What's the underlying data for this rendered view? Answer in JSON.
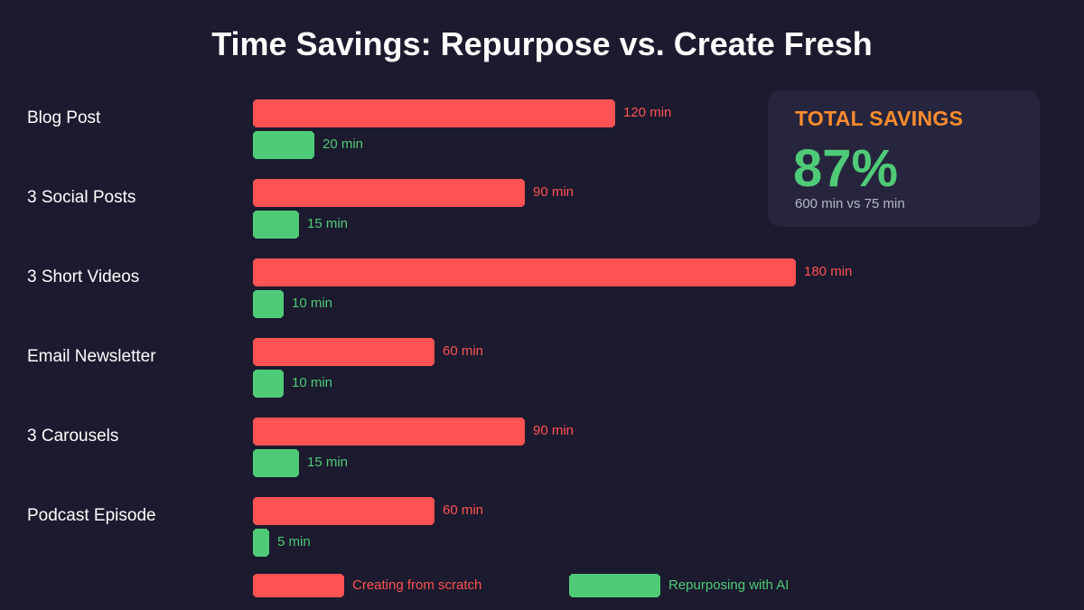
{
  "chart_data": {
    "type": "bar",
    "orientation": "horizontal",
    "title": "Time Savings: Repurpose vs. Create Fresh",
    "categories": [
      "Blog Post",
      "3 Social Posts",
      "3 Short Videos",
      "Email Newsletter",
      "3 Carousels",
      "Podcast Episode"
    ],
    "series": [
      {
        "name": "Creating from scratch",
        "color": "#ff5252",
        "values": [
          120,
          90,
          180,
          60,
          90,
          60
        ],
        "labels": [
          "120 min",
          "90 min",
          "180 min",
          "60 min",
          "90 min",
          "60 min"
        ]
      },
      {
        "name": "Repurposing with AI",
        "color": "#4fcb78",
        "values": [
          20,
          15,
          10,
          10,
          15,
          5
        ],
        "labels": [
          "20 min",
          "15 min",
          "10 min",
          "10 min",
          "15 min",
          "5 min"
        ]
      }
    ],
    "xlim": [
      0,
      180
    ],
    "grid": false,
    "legend_position": "bottom"
  },
  "savings": {
    "heading": "TOTAL SAVINGS",
    "percent": "87%",
    "comparison": "600 min vs 75 min",
    "heading_color": "#ff8c2e"
  }
}
